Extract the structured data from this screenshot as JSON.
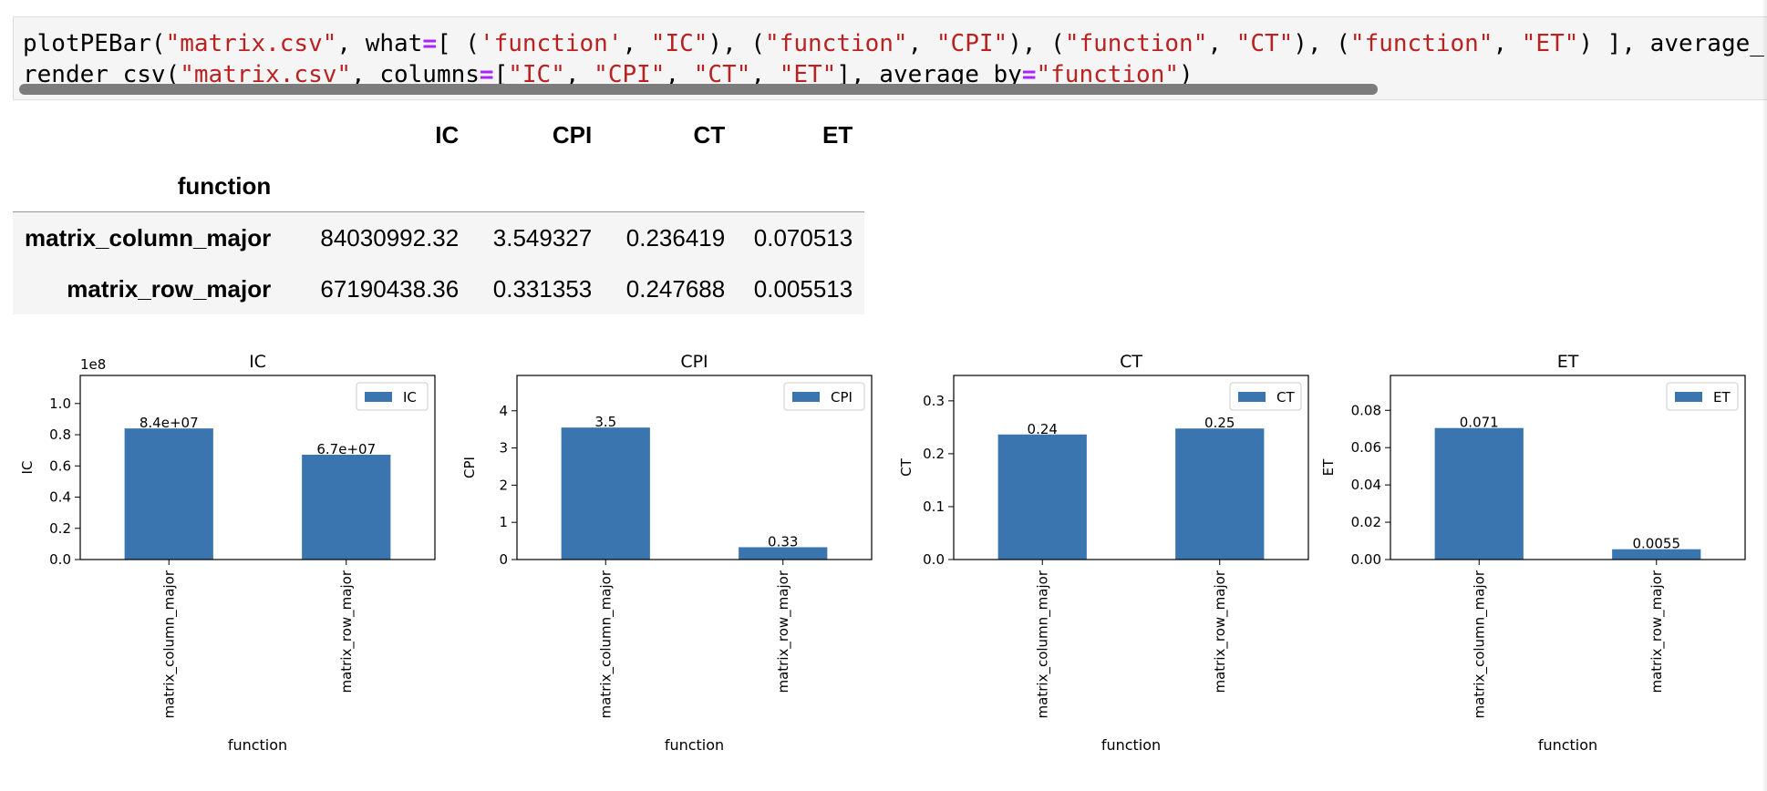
{
  "code_cell": {
    "line1": [
      {
        "t": "plotPEBar(",
        "c": ""
      },
      {
        "t": "\"matrix.csv\"",
        "c": "str"
      },
      {
        "t": ", what",
        "c": ""
      },
      {
        "t": "=",
        "c": "op"
      },
      {
        "t": "[ (",
        "c": ""
      },
      {
        "t": "'function'",
        "c": "str"
      },
      {
        "t": ", ",
        "c": ""
      },
      {
        "t": "\"IC\"",
        "c": "str"
      },
      {
        "t": "), (",
        "c": ""
      },
      {
        "t": "\"function\"",
        "c": "str"
      },
      {
        "t": ", ",
        "c": ""
      },
      {
        "t": "\"CPI\"",
        "c": "str"
      },
      {
        "t": "), (",
        "c": ""
      },
      {
        "t": "\"function\"",
        "c": "str"
      },
      {
        "t": ", ",
        "c": ""
      },
      {
        "t": "\"CT\"",
        "c": "str"
      },
      {
        "t": "), (",
        "c": ""
      },
      {
        "t": "\"function\"",
        "c": "str"
      },
      {
        "t": ", ",
        "c": ""
      },
      {
        "t": "\"ET\"",
        "c": "str"
      },
      {
        "t": ") ], average_",
        "c": ""
      }
    ],
    "line2": [
      {
        "t": "render_csv(",
        "c": ""
      },
      {
        "t": "\"matrix.csv\"",
        "c": "str"
      },
      {
        "t": ", columns",
        "c": ""
      },
      {
        "t": "=",
        "c": "op"
      },
      {
        "t": "[",
        "c": ""
      },
      {
        "t": "\"IC\"",
        "c": "str"
      },
      {
        "t": ", ",
        "c": ""
      },
      {
        "t": "\"CPI\"",
        "c": "str"
      },
      {
        "t": ", ",
        "c": ""
      },
      {
        "t": "\"CT\"",
        "c": "str"
      },
      {
        "t": ", ",
        "c": ""
      },
      {
        "t": "\"ET\"",
        "c": "str"
      },
      {
        "t": "], average_by",
        "c": ""
      },
      {
        "t": "=",
        "c": "op"
      },
      {
        "t": "\"function\"",
        "c": "str"
      },
      {
        "t": ")",
        "c": ""
      }
    ]
  },
  "table": {
    "columns": [
      "IC",
      "CPI",
      "CT",
      "ET"
    ],
    "index_name": "function",
    "rows": [
      {
        "name": "matrix_column_major",
        "values": [
          "84030992.32",
          "3.549327",
          "0.236419",
          "0.070513"
        ]
      },
      {
        "name": "matrix_row_major",
        "values": [
          "67190438.36",
          "0.331353",
          "0.247688",
          "0.005513"
        ]
      }
    ]
  },
  "colors": {
    "bar": "#3a75af",
    "string": "#ba2121",
    "operator": "#aa22ff",
    "code_bg": "#f5f5f5"
  },
  "chart_data": [
    {
      "type": "bar",
      "title": "IC",
      "xlabel": "function",
      "ylabel": "IC",
      "categories": [
        "matrix_column_major",
        "matrix_row_major"
      ],
      "series": [
        {
          "name": "IC",
          "values": [
            84030992.32,
            67190438.36
          ]
        }
      ],
      "bar_labels": [
        "8.4e+07",
        "6.7e+07"
      ],
      "ylim": [
        0,
        118000000
      ],
      "yticks": [
        0,
        20000000,
        40000000,
        60000000,
        80000000,
        100000000
      ],
      "ytick_labels": [
        "0.0",
        "0.2",
        "0.4",
        "0.6",
        "0.8",
        "1.0"
      ],
      "offset_label": "1e8",
      "legend": "upper right",
      "grid": false
    },
    {
      "type": "bar",
      "title": "CPI",
      "xlabel": "function",
      "ylabel": "CPI",
      "categories": [
        "matrix_column_major",
        "matrix_row_major"
      ],
      "series": [
        {
          "name": "CPI",
          "values": [
            3.549327,
            0.331353
          ]
        }
      ],
      "bar_labels": [
        "3.5",
        "0.33"
      ],
      "ylim": [
        0,
        4.95
      ],
      "yticks": [
        0,
        1,
        2,
        3,
        4
      ],
      "ytick_labels": [
        "0",
        "1",
        "2",
        "3",
        "4"
      ],
      "legend": "upper right",
      "grid": false
    },
    {
      "type": "bar",
      "title": "CT",
      "xlabel": "function",
      "ylabel": "CT",
      "categories": [
        "matrix_column_major",
        "matrix_row_major"
      ],
      "series": [
        {
          "name": "CT",
          "values": [
            0.236419,
            0.247688
          ]
        }
      ],
      "bar_labels": [
        "0.24",
        "0.25"
      ],
      "ylim": [
        0,
        0.348
      ],
      "yticks": [
        0,
        0.1,
        0.2,
        0.3
      ],
      "ytick_labels": [
        "0.0",
        "0.1",
        "0.2",
        "0.3"
      ],
      "legend": "upper right",
      "grid": false
    },
    {
      "type": "bar",
      "title": "ET",
      "xlabel": "function",
      "ylabel": "ET",
      "categories": [
        "matrix_column_major",
        "matrix_row_major"
      ],
      "series": [
        {
          "name": "ET",
          "values": [
            0.070513,
            0.005513
          ]
        }
      ],
      "bar_labels": [
        "0.071",
        "0.0055"
      ],
      "ylim": [
        0,
        0.0987
      ],
      "yticks": [
        0,
        0.02,
        0.04,
        0.06,
        0.08
      ],
      "ytick_labels": [
        "0.00",
        "0.02",
        "0.04",
        "0.06",
        "0.08"
      ],
      "legend": "upper right",
      "grid": false
    }
  ]
}
